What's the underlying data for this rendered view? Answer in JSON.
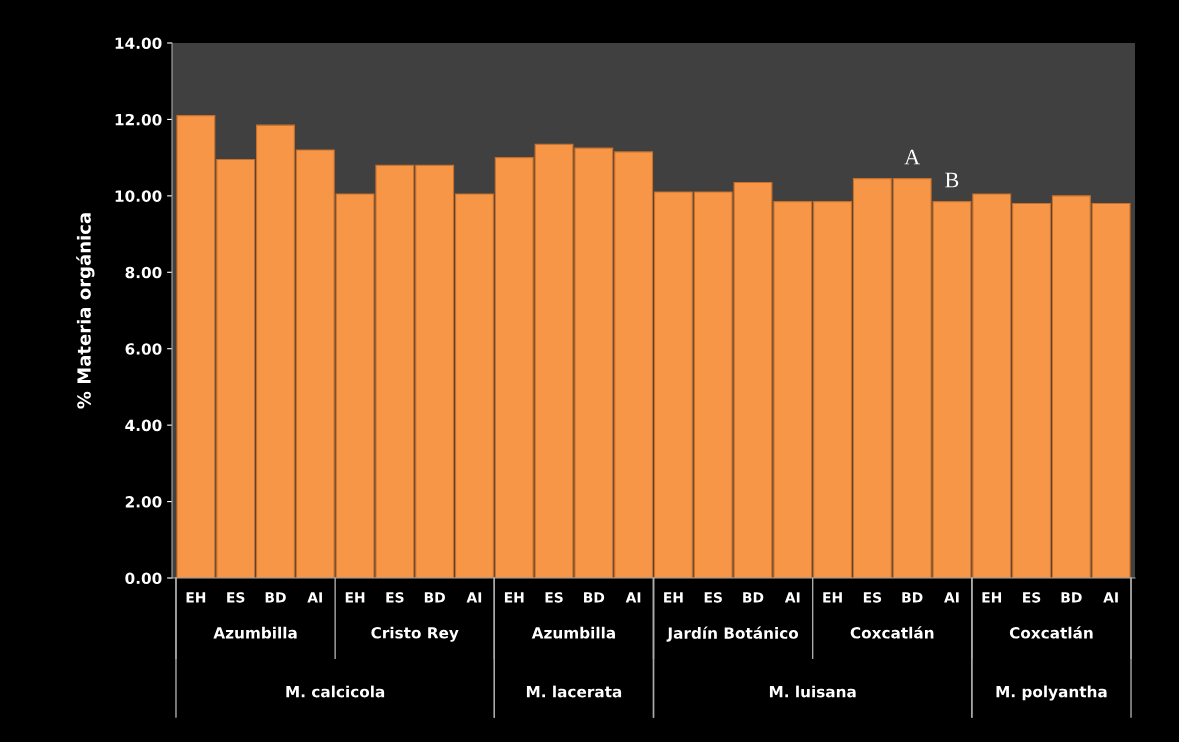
{
  "chart_data": {
    "type": "bar",
    "ylabel": "% Materia orgánica",
    "categories": [
      "EH",
      "ES",
      "BD",
      "AI",
      "EH",
      "ES",
      "BD",
      "AI",
      "EH",
      "ES",
      "BD",
      "AI",
      "EH",
      "ES",
      "BD",
      "AI",
      "EH",
      "ES",
      "BD",
      "AI",
      "EH",
      "ES",
      "BD",
      "AI"
    ],
    "values": [
      12.1,
      10.95,
      11.85,
      11.2,
      10.05,
      10.8,
      10.8,
      10.05,
      11.0,
      11.35,
      11.25,
      11.15,
      10.1,
      10.1,
      10.35,
      9.85,
      9.85,
      10.45,
      10.45,
      9.85,
      10.05,
      9.8,
      10.0,
      9.8
    ],
    "color": "#f79646",
    "ylim": [
      0,
      14
    ],
    "yticks": [
      {
        "value": 0,
        "label": "0.00"
      },
      {
        "value": 2,
        "label": "2.00"
      },
      {
        "value": 4,
        "label": "4.00"
      },
      {
        "value": 6,
        "label": "6.00"
      },
      {
        "value": 8,
        "label": "8.00"
      },
      {
        "value": 10,
        "label": "10.00"
      },
      {
        "value": 12,
        "label": "12.00"
      },
      {
        "value": 14,
        "label": "14.00"
      }
    ],
    "grid": false,
    "annotations": [
      "Azumbilla",
      "Cristo Rey",
      "Azumbilla",
      "Jardín Botánico",
      "Coxcatlán",
      "Coxcatlán",
      "M. calcicola",
      "M. lacerata",
      "M. luisana",
      "M. polyantha",
      "A",
      "B"
    ]
  }
}
